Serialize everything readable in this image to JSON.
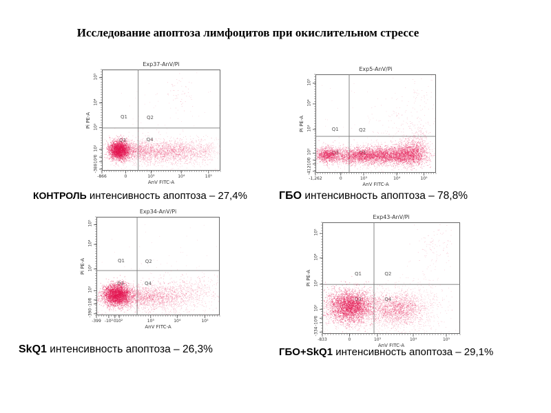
{
  "slide": {
    "title": "Исследование апоптоза лимфоцитов при окислительном стрессе"
  },
  "colors": {
    "dot_dense": "#e31450",
    "dot_light": "#f2839b",
    "frame": "#555555",
    "quadrant_line": "#777777",
    "background": "#ffffff"
  },
  "chart_data": [
    {
      "type": "scatter",
      "title": "Exp37-AnV/Pi",
      "xlabel": "AnV FITC-A",
      "ylabel": "Pi PE-A",
      "group": "КОНТРОЛЬ",
      "caption": " интенсивность апоптоза – 27,4%",
      "apoptosis_intensity_pct": 27.4,
      "x_ticks": [
        {
          "label": "-866",
          "f": 0.0
        },
        {
          "label": "0",
          "f": 0.2
        },
        {
          "label": "10³",
          "f": 0.415
        },
        {
          "label": "10⁴",
          "f": 0.67
        },
        {
          "label": "10⁵",
          "f": 0.9
        }
      ],
      "y_ticks": [
        {
          "label": "10⁵",
          "f": 0.08
        },
        {
          "label": "10⁴",
          "f": 0.33
        },
        {
          "label": "10³",
          "f": 0.575
        },
        {
          "label": "10²",
          "f": 0.79
        },
        {
          "label": "0",
          "f": 0.865
        },
        {
          "label": "-10²",
          "f": 0.91
        },
        {
          "label": "-380",
          "f": 0.985
        }
      ],
      "quadrants": {
        "vline": 0.306,
        "hline": 0.578,
        "labels": [
          {
            "label": "Q1",
            "x": 0.186,
            "y": 0.469
          },
          {
            "label": "Q2",
            "x": 0.407,
            "y": 0.476
          },
          {
            "label": "Q3",
            "x": 0.174,
            "y": 0.7
          },
          {
            "label": "Q4",
            "x": 0.405,
            "y": 0.694
          }
        ]
      },
      "clusters": [
        {
          "cx": 0.145,
          "cy": 0.795,
          "sx": 0.042,
          "sy": 0.045,
          "n": 2800,
          "c": "dense",
          "a": 0.5
        },
        {
          "cx": 0.3,
          "cy": 0.8,
          "sx": 0.1,
          "sy": 0.05,
          "n": 700,
          "c": "dense",
          "a": 0.3
        },
        {
          "cx": 0.5,
          "cy": 0.81,
          "sx": 0.16,
          "sy": 0.05,
          "n": 900,
          "c": "dense",
          "a": 0.3
        },
        {
          "cx": 0.68,
          "cy": 0.8,
          "sx": 0.14,
          "sy": 0.055,
          "n": 600,
          "c": "dense",
          "a": 0.28
        },
        {
          "cx": 0.5,
          "cy": 0.83,
          "sx": 0.28,
          "sy": 0.1,
          "n": 400,
          "c": "light",
          "a": 0.4
        },
        {
          "cx": 0.88,
          "cy": 0.8,
          "sx": 0.07,
          "sy": 0.06,
          "n": 150,
          "c": "light",
          "a": 0.4
        },
        {
          "cx": 0.64,
          "cy": 0.22,
          "sx": 0.06,
          "sy": 0.09,
          "n": 50,
          "c": "light",
          "a": 0.45
        },
        {
          "cx": 0.55,
          "cy": 0.45,
          "sx": 0.3,
          "sy": 0.28,
          "n": 70,
          "c": "light",
          "a": 0.3
        }
      ]
    },
    {
      "type": "scatter",
      "title": "Exp5-AnV/Pi",
      "xlabel": "AnV FITC-A",
      "ylabel": "Pi PE-A",
      "group": "ГБО",
      "caption": " интенсивность апоптоза – 78,8%",
      "apoptosis_intensity_pct": 78.8,
      "x_ticks": [
        {
          "label": "-1,262",
          "f": 0.0
        },
        {
          "label": "0",
          "f": 0.21
        },
        {
          "label": "10³",
          "f": 0.4
        },
        {
          "label": "10⁴",
          "f": 0.675
        },
        {
          "label": "10⁵",
          "f": 0.9
        }
      ],
      "y_ticks": [
        {
          "label": "10⁵",
          "f": 0.09
        },
        {
          "label": "10⁴",
          "f": 0.3
        },
        {
          "label": "10³",
          "f": 0.56
        },
        {
          "label": "10²",
          "f": 0.8
        },
        {
          "label": "0",
          "f": 0.87
        },
        {
          "label": "-10²",
          "f": 0.91
        },
        {
          "label": "-412",
          "f": 0.985
        }
      ],
      "quadrants": {
        "vline": 0.28,
        "hline": 0.63,
        "labels": [
          {
            "label": "Q1",
            "x": 0.164,
            "y": 0.562
          },
          {
            "label": "Q2",
            "x": 0.389,
            "y": 0.564
          },
          {
            "label": "Q3",
            "x": 0.165,
            "y": 0.8
          },
          {
            "label": "Q4",
            "x": 0.39,
            "y": 0.8
          }
        ]
      },
      "clusters": [
        {
          "cx": 0.1,
          "cy": 0.815,
          "sx": 0.05,
          "sy": 0.038,
          "n": 1000,
          "c": "dense",
          "a": 0.45
        },
        {
          "cx": 0.33,
          "cy": 0.825,
          "sx": 0.1,
          "sy": 0.04,
          "n": 1300,
          "c": "dense",
          "a": 0.4
        },
        {
          "cx": 0.57,
          "cy": 0.82,
          "sx": 0.13,
          "sy": 0.042,
          "n": 2200,
          "c": "dense",
          "a": 0.45
        },
        {
          "cx": 0.78,
          "cy": 0.81,
          "sx": 0.07,
          "sy": 0.06,
          "n": 1300,
          "c": "dense",
          "a": 0.45
        },
        {
          "cx": 0.45,
          "cy": 0.83,
          "sx": 0.28,
          "sy": 0.07,
          "n": 600,
          "c": "light",
          "a": 0.4
        },
        {
          "cx": 0.85,
          "cy": 0.72,
          "sx": 0.05,
          "sy": 0.09,
          "n": 300,
          "c": "dense",
          "a": 0.3
        },
        {
          "cx": 0.75,
          "cy": 0.55,
          "sx": 0.15,
          "sy": 0.13,
          "n": 150,
          "c": "light",
          "a": 0.4
        },
        {
          "cx": 0.88,
          "cy": 0.2,
          "sx": 0.07,
          "sy": 0.12,
          "n": 50,
          "c": "light",
          "a": 0.4
        },
        {
          "cx": 0.4,
          "cy": 0.45,
          "sx": 0.3,
          "sy": 0.2,
          "n": 60,
          "c": "light",
          "a": 0.3
        }
      ]
    },
    {
      "type": "scatter",
      "title": "Exp34-AnV/Pi",
      "xlabel": "AnV FITC-A",
      "ylabel": "Pi PE-A",
      "group": "SkQ1",
      "caption": " интенсивность апоптоза – 26,3%",
      "apoptosis_intensity_pct": 26.3,
      "x_ticks": [
        {
          "label": "-399",
          "f": 0.0
        },
        {
          "label": "-10²",
          "f": 0.1
        },
        {
          "label": "0",
          "f": 0.15
        },
        {
          "label": "10²",
          "f": 0.185
        },
        {
          "label": "10³",
          "f": 0.44
        },
        {
          "label": "10⁴",
          "f": 0.655
        },
        {
          "label": "10⁵",
          "f": 0.88
        }
      ],
      "y_ticks": [
        {
          "label": "10⁵",
          "f": 0.08
        },
        {
          "label": "10⁴",
          "f": 0.28
        },
        {
          "label": "10³",
          "f": 0.53
        },
        {
          "label": "10²",
          "f": 0.75
        },
        {
          "label": "0",
          "f": 0.845
        },
        {
          "label": "-10²",
          "f": 0.885
        },
        {
          "label": "-390",
          "f": 0.985
        }
      ],
      "quadrants": {
        "vline": 0.33,
        "hline": 0.546,
        "labels": [
          {
            "label": "Q1",
            "x": 0.201,
            "y": 0.448
          },
          {
            "label": "Q2",
            "x": 0.423,
            "y": 0.452
          },
          {
            "label": "Q3",
            "x": 0.196,
            "y": 0.676
          },
          {
            "label": "Q4",
            "x": 0.419,
            "y": 0.676
          }
        ]
      },
      "clusters": [
        {
          "cx": 0.165,
          "cy": 0.79,
          "sx": 0.055,
          "sy": 0.055,
          "n": 3300,
          "c": "dense",
          "a": 0.5
        },
        {
          "cx": 0.38,
          "cy": 0.81,
          "sx": 0.13,
          "sy": 0.06,
          "n": 1100,
          "c": "dense",
          "a": 0.33
        },
        {
          "cx": 0.6,
          "cy": 0.8,
          "sx": 0.14,
          "sy": 0.07,
          "n": 600,
          "c": "dense",
          "a": 0.28
        },
        {
          "cx": 0.55,
          "cy": 0.84,
          "sx": 0.28,
          "sy": 0.1,
          "n": 400,
          "c": "light",
          "a": 0.4
        },
        {
          "cx": 0.82,
          "cy": 0.72,
          "sx": 0.1,
          "sy": 0.07,
          "n": 200,
          "c": "light",
          "a": 0.45
        },
        {
          "cx": 0.5,
          "cy": 0.45,
          "sx": 0.3,
          "sy": 0.25,
          "n": 60,
          "c": "light",
          "a": 0.3
        }
      ]
    },
    {
      "type": "scatter",
      "title": "Exp43-AnV/Pi",
      "xlabel": "AnV FITC-A",
      "ylabel": "Pi PE-A",
      "group": "ГБО+SkQ1",
      "caption": " интенсивность апоптоза – 29,1%",
      "apoptosis_intensity_pct": 29.1,
      "x_ticks": [
        {
          "label": "-833",
          "f": 0.0
        },
        {
          "label": "0",
          "f": 0.197
        },
        {
          "label": "10³",
          "f": 0.4
        },
        {
          "label": "10⁴",
          "f": 0.66
        },
        {
          "label": "10⁵",
          "f": 0.9
        }
      ],
      "y_ticks": [
        {
          "label": "10⁵",
          "f": 0.1
        },
        {
          "label": "10⁴",
          "f": 0.32
        },
        {
          "label": "10³",
          "f": 0.555
        },
        {
          "label": "10²",
          "f": 0.78
        },
        {
          "label": "0",
          "f": 0.86
        },
        {
          "label": "-10²",
          "f": 0.9
        },
        {
          "label": "-334",
          "f": 0.985
        }
      ],
      "quadrants": {
        "vline": 0.375,
        "hline": 0.557,
        "labels": [
          {
            "label": "Q1",
            "x": 0.26,
            "y": 0.461
          },
          {
            "label": "Q2",
            "x": 0.477,
            "y": 0.465
          },
          {
            "label": "Q3",
            "x": 0.26,
            "y": 0.69
          },
          {
            "label": "Q4",
            "x": 0.477,
            "y": 0.69
          }
        ]
      },
      "clusters": [
        {
          "cx": 0.2,
          "cy": 0.75,
          "sx": 0.08,
          "sy": 0.068,
          "n": 3300,
          "c": "dense",
          "a": 0.5
        },
        {
          "cx": 0.55,
          "cy": 0.77,
          "sx": 0.085,
          "sy": 0.062,
          "n": 1200,
          "c": "dense",
          "a": 0.38
        },
        {
          "cx": 0.37,
          "cy": 0.78,
          "sx": 0.17,
          "sy": 0.1,
          "n": 900,
          "c": "light",
          "a": 0.4
        },
        {
          "cx": 0.68,
          "cy": 0.75,
          "sx": 0.12,
          "sy": 0.1,
          "n": 350,
          "c": "light",
          "a": 0.4
        },
        {
          "cx": 0.45,
          "cy": 0.92,
          "sx": 0.28,
          "sy": 0.05,
          "n": 250,
          "c": "light",
          "a": 0.35
        },
        {
          "cx": 0.82,
          "cy": 0.16,
          "sx": 0.07,
          "sy": 0.1,
          "n": 80,
          "c": "light",
          "a": 0.45
        },
        {
          "cx": 0.75,
          "cy": 0.45,
          "sx": 0.1,
          "sy": 0.15,
          "n": 60,
          "c": "light",
          "a": 0.35
        }
      ]
    }
  ]
}
